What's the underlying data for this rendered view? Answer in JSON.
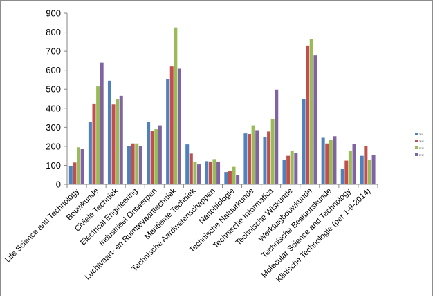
{
  "chart_data": {
    "type": "bar",
    "categories": [
      "Life Science and Technology",
      "Bouwkunde",
      "Civiele Techniek",
      "Electrical Engineering",
      "Industrieel Ontwerpen",
      "Luchtvaart- en Ruimtevaarttechniek",
      "Maritieme Techniek",
      "Technische Aardwetenschappen",
      "Nanobiologie",
      "Technische Natuurkunde",
      "Technische Informatica",
      "Technische Wiskunde",
      "Werktuigbouwkunde",
      "Technische Bestuurskunde",
      "Molecular Science and Technology",
      "Klinische Technologie (per 1-9-2014)"
    ],
    "series": [
      {
        "name": "2011",
        "color": "#4f81bd",
        "values": [
          95,
          330,
          545,
          200,
          330,
          555,
          210,
          122,
          65,
          268,
          250,
          130,
          450,
          245,
          80,
          150
        ]
      },
      {
        "name": "2012",
        "color": "#c0504d",
        "values": [
          115,
          425,
          420,
          215,
          280,
          620,
          162,
          120,
          70,
          265,
          278,
          150,
          730,
          215,
          125,
          202
        ]
      },
      {
        "name": "2013",
        "color": "#9bbb59",
        "values": [
          195,
          515,
          450,
          215,
          290,
          825,
          120,
          133,
          92,
          310,
          345,
          178,
          765,
          235,
          178,
          130
        ]
      },
      {
        "name": "2014",
        "color": "#8064a2",
        "values": [
          185,
          640,
          465,
          202,
          310,
          608,
          105,
          120,
          48,
          285,
          498,
          165,
          678,
          253,
          213,
          155
        ]
      }
    ],
    "y_ticks": [
      "0",
      "100",
      "200",
      "300",
      "400",
      "500",
      "600",
      "700",
      "800",
      "900"
    ],
    "ylim": [
      0,
      900
    ],
    "grid": false,
    "legend_position": "right"
  }
}
